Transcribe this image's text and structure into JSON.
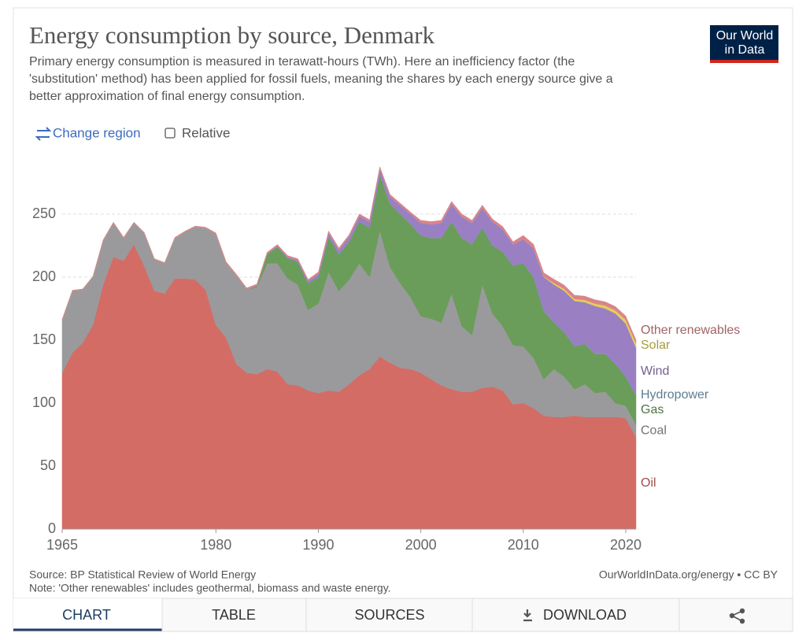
{
  "logo": [
    "Our World",
    "in Data"
  ],
  "controls": {
    "change_region": "Change region",
    "relative": "Relative"
  },
  "source": "Source: BP Statistical Review of World Energy",
  "note": "Note: 'Other renewables' includes geothermal, biomass and waste energy.",
  "license": "OurWorldInData.org/energy • CC BY",
  "tabs": [
    "CHART",
    "TABLE",
    "SOURCES",
    "DOWNLOAD"
  ],
  "chart_data": {
    "type": "stacked_area",
    "title": "Energy consumption by source, Denmark",
    "subtitle": [
      "Primary energy consumption is measured in terawatt-hours (TWh). Here an inefficiency factor (the",
      "'substitution' method) has been applied for fossil fuels, meaning the shares by each energy source give a",
      "better approximation of final energy consumption."
    ],
    "x": [
      1965,
      1966,
      1967,
      1968,
      1969,
      1970,
      1971,
      1972,
      1973,
      1974,
      1975,
      1976,
      1977,
      1978,
      1979,
      1980,
      1981,
      1982,
      1983,
      1984,
      1985,
      1986,
      1987,
      1988,
      1989,
      1990,
      1991,
      1992,
      1993,
      1994,
      1995,
      1996,
      1997,
      1998,
      1999,
      2000,
      2001,
      2002,
      2003,
      2004,
      2005,
      2006,
      2007,
      2008,
      2009,
      2010,
      2011,
      2012,
      2013,
      2014,
      2015,
      2016,
      2017,
      2018,
      2019,
      2020,
      2021
    ],
    "xlim": [
      1965,
      2021
    ],
    "xticks": [
      1965,
      1980,
      1990,
      2000,
      2010,
      2020
    ],
    "ylim": [
      0,
      290
    ],
    "yticks": [
      0,
      50,
      100,
      150,
      200,
      250
    ],
    "grid": true,
    "series": [
      {
        "name": "Oil",
        "color": "#d46c66",
        "values": [
          124,
          140,
          148,
          162,
          194,
          216,
          213,
          226,
          209,
          189,
          187,
          199,
          199,
          198,
          190,
          162,
          152,
          131,
          124,
          123,
          127,
          125,
          115,
          114,
          110,
          108,
          110,
          109,
          115,
          122,
          127,
          137,
          132,
          128,
          127,
          124,
          119,
          114,
          111,
          109,
          109,
          112,
          113,
          110,
          99,
          100,
          96,
          90,
          89,
          89,
          90,
          89,
          89,
          89,
          89,
          88,
          73
        ]
      },
      {
        "name": "Coal",
        "color": "#9a9a9d",
        "values": [
          42,
          49,
          42,
          38,
          35,
          27,
          18,
          17,
          26,
          25,
          24,
          32,
          37,
          42,
          49,
          72,
          59,
          70,
          66,
          69,
          84,
          86,
          84,
          80,
          64,
          71,
          94,
          80,
          83,
          89,
          73,
          100,
          76,
          67,
          57,
          45,
          48,
          50,
          76,
          52,
          45,
          82,
          58,
          51,
          47,
          45,
          40,
          29,
          38,
          32,
          21,
          26,
          19,
          20,
          11,
          10,
          10
        ]
      },
      {
        "name": "Gas",
        "color": "#6a9d59",
        "values": [
          0,
          0,
          0,
          0,
          0,
          0,
          0,
          0,
          0,
          0,
          0,
          0,
          0,
          0,
          0,
          0,
          0,
          0,
          0,
          1,
          7,
          13,
          16,
          18,
          21,
          21,
          28,
          29,
          30,
          33,
          39,
          44,
          50,
          55,
          58,
          64,
          64,
          67,
          57,
          70,
          72,
          45,
          54,
          59,
          63,
          66,
          64,
          54,
          37,
          35,
          34,
          32,
          31,
          30,
          31,
          23,
          23
        ]
      },
      {
        "name": "Hydropower",
        "color": "#7fa9c2",
        "values": [
          0.1,
          0.1,
          0.1,
          0.1,
          0.1,
          0.1,
          0.1,
          0.1,
          0.1,
          0.1,
          0.1,
          0.1,
          0.1,
          0.1,
          0.1,
          0.1,
          0.1,
          0.1,
          0.1,
          0.1,
          0.1,
          0.1,
          0.1,
          0.1,
          0.1,
          0.1,
          0.1,
          0.1,
          0.1,
          0.1,
          0.1,
          0.1,
          0.1,
          0.1,
          0.1,
          0.1,
          0.1,
          0.1,
          0.1,
          0.1,
          0.1,
          0.1,
          0.1,
          0.1,
          0.1,
          0.1,
          0.1,
          0.1,
          0.1,
          0.1,
          0.1,
          0.1,
          0.1,
          0.1,
          0.1,
          0.1,
          0.1
        ]
      },
      {
        "name": "Wind",
        "color": "#9a80c3",
        "values": [
          0,
          0,
          0,
          0,
          0,
          0,
          0,
          0,
          0,
          0,
          0,
          0,
          0,
          0,
          0,
          0,
          0.1,
          0.2,
          0.3,
          0.4,
          0.6,
          0.8,
          1,
          1.5,
          2,
          2.5,
          3,
          3.5,
          4,
          4.5,
          5,
          5,
          6,
          7,
          8,
          10,
          11,
          12,
          14,
          17,
          17,
          16,
          19,
          18,
          17,
          19,
          23,
          27,
          30,
          33,
          36,
          33,
          38,
          36,
          40,
          42,
          38
        ]
      },
      {
        "name": "Solar",
        "color": "#e3cf57",
        "values": [
          0,
          0,
          0,
          0,
          0,
          0,
          0,
          0,
          0,
          0,
          0,
          0,
          0,
          0,
          0,
          0,
          0,
          0,
          0,
          0,
          0,
          0,
          0,
          0,
          0,
          0,
          0,
          0,
          0,
          0,
          0,
          0,
          0,
          0,
          0,
          0,
          0,
          0,
          0,
          0,
          0,
          0,
          0,
          0,
          0,
          0,
          0,
          0.3,
          1.2,
          1.5,
          1.5,
          1.8,
          1.9,
          2.3,
          2.5,
          3,
          3.5
        ]
      },
      {
        "name": "Other renewables",
        "color": "#d9848a",
        "values": [
          0.5,
          0.5,
          0.5,
          0.5,
          0.5,
          0.5,
          0.5,
          0.5,
          0.5,
          0.5,
          0.5,
          0.5,
          0.5,
          0.5,
          0.5,
          1,
          1,
          1,
          1,
          1,
          1,
          1,
          1,
          1,
          1,
          1.5,
          1.5,
          1.5,
          1.5,
          1.5,
          1.5,
          1.5,
          1.5,
          1.5,
          1.5,
          2,
          2,
          2,
          2,
          2,
          2,
          2,
          2,
          2,
          2,
          3,
          3,
          3,
          3,
          3,
          3,
          3,
          3,
          3,
          3,
          3,
          2.5
        ]
      }
    ]
  }
}
